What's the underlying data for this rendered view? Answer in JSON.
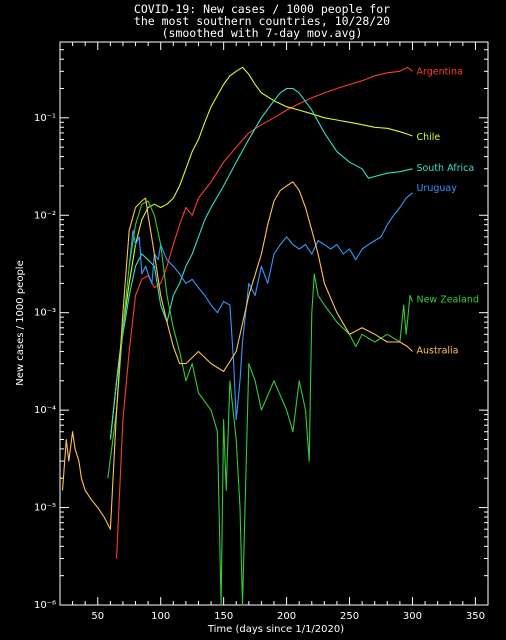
{
  "chart_data": {
    "type": "line",
    "title": [
      "COVID-19: New cases / 1000 people for",
      "the most southern countries, 10/28/20",
      "(smoothed with 7-day mov.avg)"
    ],
    "xlabel": "Time (days since 1/1/2020)",
    "ylabel": "New cases / 1000 people",
    "xlim": [
      20,
      360
    ],
    "ylim": [
      1e-06,
      0.6
    ],
    "yscale": "log",
    "xticks": [
      50,
      100,
      150,
      200,
      250,
      300,
      350
    ],
    "yticks": [
      {
        "value": 1e-06,
        "label": "10⁻⁶"
      },
      {
        "value": 1e-05,
        "label": "10⁻⁵"
      },
      {
        "value": 0.0001,
        "label": "10⁻⁴"
      },
      {
        "value": 0.001,
        "label": "10⁻³"
      },
      {
        "value": 0.01,
        "label": "10⁻²"
      },
      {
        "value": 0.1,
        "label": "10⁻¹"
      }
    ],
    "grid": false,
    "legend": "inline labels at line ends",
    "series": [
      {
        "name": "Argentina",
        "color": "#ff3b2f",
        "x": [
          65,
          70,
          75,
          80,
          85,
          90,
          95,
          100,
          105,
          110,
          115,
          120,
          125,
          130,
          140,
          150,
          160,
          170,
          180,
          190,
          200,
          210,
          220,
          230,
          240,
          250,
          260,
          270,
          280,
          290,
          296,
          300
        ],
        "y": [
          3e-06,
          8e-05,
          0.0004,
          0.0015,
          0.0022,
          0.0024,
          0.0018,
          0.002,
          0.003,
          0.005,
          0.008,
          0.012,
          0.01,
          0.015,
          0.022,
          0.035,
          0.05,
          0.07,
          0.085,
          0.1,
          0.12,
          0.14,
          0.16,
          0.18,
          0.2,
          0.22,
          0.24,
          0.27,
          0.29,
          0.3,
          0.33,
          0.3
        ]
      },
      {
        "name": "Chile",
        "color": "#ccff33",
        "x": [
          60,
          65,
          70,
          75,
          80,
          85,
          90,
          95,
          100,
          105,
          110,
          115,
          120,
          125,
          130,
          135,
          140,
          145,
          150,
          155,
          160,
          165,
          170,
          175,
          180,
          190,
          200,
          210,
          220,
          230,
          240,
          250,
          260,
          270,
          280,
          290,
          296,
          300
        ],
        "y": [
          5e-05,
          0.0002,
          0.0007,
          0.002,
          0.005,
          0.009,
          0.012,
          0.013,
          0.012,
          0.013,
          0.015,
          0.02,
          0.03,
          0.045,
          0.06,
          0.09,
          0.13,
          0.17,
          0.22,
          0.27,
          0.3,
          0.33,
          0.28,
          0.22,
          0.18,
          0.15,
          0.13,
          0.12,
          0.11,
          0.1,
          0.095,
          0.09,
          0.085,
          0.08,
          0.078,
          0.072,
          0.068,
          0.065
        ]
      },
      {
        "name": "South Africa",
        "color": "#33e0c4",
        "x": [
          60,
          65,
          70,
          75,
          80,
          85,
          90,
          95,
          100,
          105,
          110,
          115,
          120,
          125,
          130,
          135,
          140,
          150,
          160,
          170,
          180,
          190,
          195,
          200,
          205,
          210,
          220,
          230,
          240,
          250,
          260,
          265,
          270,
          280,
          290,
          300
        ],
        "y": [
          5e-05,
          0.0002,
          0.0006,
          0.0015,
          0.003,
          0.004,
          0.0035,
          0.003,
          0.0012,
          0.0008,
          0.0015,
          0.002,
          0.003,
          0.004,
          0.006,
          0.009,
          0.012,
          0.02,
          0.035,
          0.06,
          0.1,
          0.15,
          0.18,
          0.2,
          0.2,
          0.18,
          0.12,
          0.07,
          0.045,
          0.035,
          0.03,
          0.024,
          0.025,
          0.027,
          0.028,
          0.03
        ]
      },
      {
        "name": "Uruguay",
        "color": "#3399ff",
        "x": [
          75,
          78,
          80,
          83,
          85,
          88,
          90,
          93,
          95,
          98,
          100,
          103,
          105,
          110,
          115,
          120,
          125,
          130,
          135,
          140,
          145,
          150,
          155,
          158,
          160,
          163,
          165,
          170,
          175,
          180,
          185,
          190,
          195,
          200,
          205,
          210,
          215,
          220,
          225,
          230,
          235,
          240,
          245,
          250,
          255,
          260,
          265,
          270,
          275,
          280,
          285,
          290,
          295,
          300
        ],
        "y": [
          0.003,
          0.007,
          0.005,
          0.006,
          0.0025,
          0.003,
          0.0025,
          0.002,
          0.004,
          0.0035,
          0.005,
          0.004,
          0.0035,
          0.003,
          0.0025,
          0.002,
          0.0022,
          0.0018,
          0.0015,
          0.0012,
          0.001,
          0.0013,
          0.0012,
          0.0003,
          8e-05,
          0.0002,
          0.0005,
          0.002,
          0.0015,
          0.003,
          0.002,
          0.004,
          0.005,
          0.006,
          0.005,
          0.0045,
          0.005,
          0.004,
          0.0055,
          0.005,
          0.0045,
          0.005,
          0.004,
          0.0045,
          0.0035,
          0.0045,
          0.005,
          0.0055,
          0.006,
          0.008,
          0.01,
          0.012,
          0.015,
          0.017
        ]
      },
      {
        "name": "New Zealand",
        "color": "#33cc33",
        "x": [
          58,
          62,
          65,
          70,
          75,
          80,
          85,
          90,
          95,
          100,
          105,
          110,
          115,
          120,
          125,
          130,
          140,
          145,
          148,
          150,
          152,
          155,
          160,
          163,
          165,
          170,
          175,
          180,
          190,
          200,
          205,
          210,
          215,
          218,
          220,
          222,
          225,
          230,
          240,
          250,
          255,
          260,
          270,
          280,
          290,
          293,
          295,
          298,
          300
        ],
        "y": [
          2e-05,
          5e-05,
          0.0001,
          0.0007,
          0.003,
          0.008,
          0.013,
          0.014,
          0.01,
          0.005,
          0.0015,
          0.0007,
          0.0004,
          0.0002,
          0.0003,
          0.00015,
          0.0001,
          6e-05,
          1e-06,
          8e-05,
          1.5e-05,
          0.0002,
          5e-05,
          1e-05,
          1e-06,
          0.0003,
          0.0002,
          0.0001,
          0.0002,
          0.0001,
          6e-05,
          0.0002,
          0.0001,
          3e-05,
          0.001,
          0.0025,
          0.0015,
          0.0012,
          0.0008,
          0.0006,
          0.00045,
          0.0006,
          0.0005,
          0.0006,
          0.0005,
          0.0012,
          0.0006,
          0.0015,
          0.0013
        ]
      },
      {
        "name": "Australia",
        "color": "#ffc34d",
        "x": [
          22,
          25,
          27,
          30,
          32,
          35,
          37,
          40,
          45,
          50,
          55,
          60,
          65,
          70,
          75,
          80,
          85,
          88,
          90,
          95,
          100,
          105,
          110,
          115,
          120,
          130,
          140,
          150,
          160,
          170,
          180,
          185,
          190,
          195,
          200,
          205,
          210,
          215,
          220,
          225,
          230,
          240,
          250,
          260,
          270,
          280,
          290,
          296,
          300
        ],
        "y": [
          1.5e-05,
          5e-05,
          3e-05,
          6e-05,
          4e-05,
          3e-05,
          2e-05,
          1.5e-05,
          1.2e-05,
          1e-05,
          8e-06,
          6e-06,
          0.0001,
          0.001,
          0.007,
          0.012,
          0.014,
          0.015,
          0.01,
          0.004,
          0.0015,
          0.0008,
          0.00045,
          0.0003,
          0.0003,
          0.0004,
          0.0003,
          0.00025,
          0.0004,
          0.0015,
          0.004,
          0.008,
          0.014,
          0.018,
          0.02,
          0.022,
          0.018,
          0.012,
          0.007,
          0.004,
          0.002,
          0.001,
          0.0006,
          0.0007,
          0.0006,
          0.0005,
          0.0005,
          0.00045,
          0.0004
        ]
      }
    ]
  }
}
